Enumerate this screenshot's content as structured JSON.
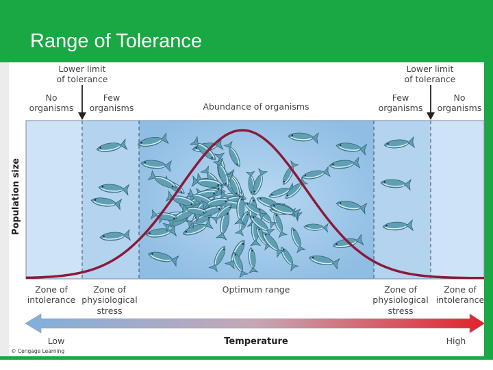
{
  "title": "Range of Tolerance",
  "limits": {
    "left": [
      "Lower limit",
      "of tolerance"
    ],
    "right": [
      "Lower limit",
      "of tolerance"
    ]
  },
  "top_labels": {
    "no_organisms_left": [
      "No",
      "organisms"
    ],
    "few_organisms_left": [
      "Few",
      "organisms"
    ],
    "abundance": "Abundance of organisms",
    "few_organisms_right": [
      "Few",
      "organisms"
    ],
    "no_organisms_right": [
      "No",
      "organisms"
    ]
  },
  "y_axis_label": "Population size",
  "zones": {
    "intolerance_left": [
      "Zone of",
      "intolerance"
    ],
    "stress_left": [
      "Zone of",
      "physiological",
      "stress"
    ],
    "optimum": "Optimum range",
    "stress_right": [
      "Zone of",
      "physiological",
      "stress"
    ],
    "intolerance_right": [
      "Zone of",
      "intolerance"
    ]
  },
  "temperature_axis": {
    "label": "Temperature",
    "low": "Low",
    "high": "High"
  },
  "copyright": "© Cengage Learning",
  "colors": {
    "title_bar": "#1aa844",
    "curve": "#8b1a3a",
    "arrow_low": "#7fb0dd",
    "arrow_high": "#e2232a"
  }
}
